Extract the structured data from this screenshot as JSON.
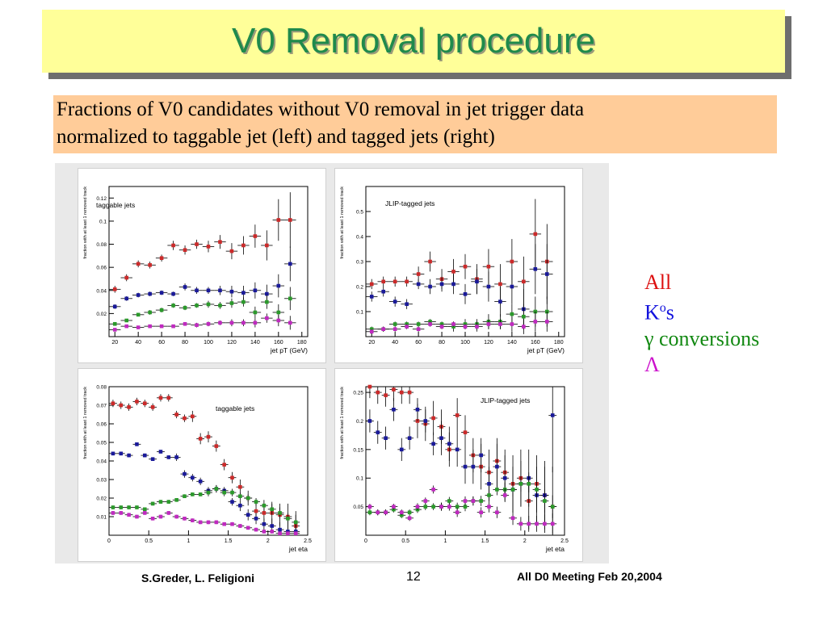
{
  "title": "V0 Removal procedure",
  "subtitle": {
    "line1": "Fractions of V0 candidates without V0 removal in jet trigger data",
    "line2": "normalized to taggable jet (left) and tagged jets (right)"
  },
  "legend": {
    "all": {
      "text": "All",
      "color": "#dd1111"
    },
    "k0s": {
      "base": "K",
      "sup": "o",
      "tail": "s",
      "color": "#1111dd"
    },
    "gamma": {
      "text": "γ conversions",
      "color": "#118811"
    },
    "lambda": {
      "text": "Λ",
      "color": "#cc11cc"
    }
  },
  "footer": {
    "authors": "S.Greder, L. Feligioni",
    "page": "12",
    "meeting": "All D0 Meeting   Feb  20,2004"
  },
  "colors": {
    "all": "#cc2a2a",
    "k0s": "#1a1a9a",
    "gamma": "#2b9a2b",
    "lambda": "#c02ac0"
  },
  "chart_data": [
    {
      "type": "scatter",
      "title": "taggable jets",
      "xlabel": "jet pT (GeV)",
      "ylabel": "fraction with at least 1 removed track",
      "xlim": [
        15,
        185
      ],
      "ylim": [
        0,
        0.13
      ],
      "xticks": [
        20,
        40,
        60,
        80,
        100,
        120,
        140,
        160,
        180
      ],
      "xticklabels": [
        "20",
        "40",
        "60",
        "80",
        "100",
        "120",
        "140",
        "160",
        "180"
      ],
      "yticks": [
        0.02,
        0.04,
        0.06,
        0.08,
        0.1,
        0.12
      ],
      "yticklabels": [
        "0.02",
        "0.04",
        "0.06",
        "0.08",
        "0.1",
        "0.12"
      ],
      "x": [
        20,
        30,
        40,
        50,
        60,
        70,
        80,
        90,
        100,
        110,
        120,
        130,
        140,
        150,
        160,
        170
      ],
      "xerr": 5,
      "series": [
        {
          "key": "all",
          "values": [
            0.041,
            0.051,
            0.063,
            0.062,
            0.068,
            0.079,
            0.075,
            0.08,
            0.078,
            0.082,
            0.074,
            0.079,
            0.087,
            0.079,
            0.101,
            0.101
          ],
          "err": [
            0.003,
            0.003,
            0.003,
            0.003,
            0.003,
            0.004,
            0.004,
            0.004,
            0.005,
            0.006,
            0.007,
            0.008,
            0.01,
            0.013,
            0.018,
            0.024
          ]
        },
        {
          "key": "k0s",
          "values": [
            0.026,
            0.033,
            0.036,
            0.037,
            0.038,
            0.037,
            0.043,
            0.04,
            0.04,
            0.04,
            0.039,
            0.038,
            0.04,
            0.037,
            0.044,
            0.063
          ],
          "err": [
            0.002,
            0.002,
            0.002,
            0.002,
            0.002,
            0.002,
            0.003,
            0.003,
            0.003,
            0.004,
            0.005,
            0.006,
            0.007,
            0.008,
            0.01,
            0.015
          ]
        },
        {
          "key": "gamma",
          "values": [
            0.011,
            0.014,
            0.019,
            0.021,
            0.023,
            0.027,
            0.025,
            0.027,
            0.028,
            0.027,
            0.029,
            0.03,
            0.021,
            0.03,
            0.021,
            0.033
          ],
          "err": [
            0.001,
            0.001,
            0.001,
            0.002,
            0.002,
            0.002,
            0.002,
            0.002,
            0.003,
            0.003,
            0.004,
            0.004,
            0.005,
            0.006,
            0.007,
            0.01
          ]
        },
        {
          "key": "lambda",
          "values": [
            0.006,
            0.009,
            0.008,
            0.009,
            0.009,
            0.009,
            0.011,
            0.01,
            0.011,
            0.012,
            0.012,
            0.012,
            0.012,
            0.016,
            0.014,
            0.012
          ],
          "err": [
            0.001,
            0.001,
            0.001,
            0.001,
            0.001,
            0.001,
            0.001,
            0.002,
            0.002,
            0.002,
            0.003,
            0.003,
            0.004,
            0.004,
            0.005,
            0.006
          ]
        }
      ]
    },
    {
      "type": "scatter",
      "title": "JLIP-tagged jets",
      "xlabel": "jet pT (GeV)",
      "ylabel": "fraction with at least 1 removed track",
      "xlim": [
        15,
        185
      ],
      "ylim": [
        0,
        0.6
      ],
      "xticks": [
        20,
        40,
        60,
        80,
        100,
        120,
        140,
        160,
        180
      ],
      "xticklabels": [
        "20",
        "40",
        "60",
        "80",
        "100",
        "120",
        "140",
        "160",
        "180"
      ],
      "yticks": [
        0.1,
        0.2,
        0.3,
        0.4,
        0.5
      ],
      "yticklabels": [
        "0.1",
        "0.2",
        "0.3",
        "0.4",
        "0.5"
      ],
      "x": [
        20,
        30,
        40,
        50,
        60,
        70,
        80,
        90,
        100,
        110,
        120,
        130,
        140,
        150,
        160,
        170
      ],
      "xerr": 5,
      "series": [
        {
          "key": "all",
          "values": [
            0.21,
            0.22,
            0.22,
            0.22,
            0.25,
            0.3,
            0.23,
            0.26,
            0.28,
            0.23,
            0.28,
            0.21,
            0.3,
            0.22,
            0.41,
            0.3
          ],
          "err": [
            0.02,
            0.02,
            0.02,
            0.02,
            0.03,
            0.04,
            0.04,
            0.05,
            0.05,
            0.06,
            0.07,
            0.08,
            0.09,
            0.1,
            0.14,
            0.15
          ]
        },
        {
          "key": "k0s",
          "values": [
            0.16,
            0.18,
            0.14,
            0.13,
            0.21,
            0.2,
            0.21,
            0.21,
            0.17,
            0.22,
            0.2,
            0.14,
            0.2,
            0.11,
            0.27,
            0.25
          ],
          "err": [
            0.02,
            0.02,
            0.02,
            0.02,
            0.02,
            0.03,
            0.03,
            0.04,
            0.04,
            0.05,
            0.06,
            0.06,
            0.07,
            0.08,
            0.1,
            0.12
          ]
        },
        {
          "key": "gamma",
          "values": [
            0.03,
            0.03,
            0.05,
            0.05,
            0.05,
            0.06,
            0.05,
            0.04,
            0.05,
            0.05,
            0.06,
            0.06,
            0.09,
            0.08,
            0.1,
            0.1
          ],
          "err": [
            0.01,
            0.01,
            0.01,
            0.01,
            0.01,
            0.01,
            0.01,
            0.02,
            0.02,
            0.02,
            0.03,
            0.03,
            0.04,
            0.05,
            0.06,
            0.06
          ]
        },
        {
          "key": "lambda",
          "values": [
            0.02,
            0.03,
            0.03,
            0.04,
            0.03,
            0.05,
            0.04,
            0.05,
            0.04,
            0.04,
            0.05,
            0.05,
            0.05,
            0.04,
            0.06,
            0.06
          ],
          "err": [
            0.01,
            0.01,
            0.01,
            0.01,
            0.01,
            0.01,
            0.01,
            0.01,
            0.01,
            0.02,
            0.02,
            0.02,
            0.03,
            0.03,
            0.04,
            0.04
          ]
        }
      ]
    },
    {
      "type": "scatter",
      "title": "taggable jets",
      "xlabel": "jet eta",
      "ylabel": "fraction with at least 1 removed track",
      "xlim": [
        0,
        2.5
      ],
      "ylim": [
        0,
        0.08
      ],
      "xticks": [
        0,
        0.5,
        1,
        1.5,
        2,
        2.5
      ],
      "xticklabels": [
        "0",
        "0.5",
        "1",
        "1.5",
        "2",
        "2.5"
      ],
      "yticks": [
        0.01,
        0.02,
        0.03,
        0.04,
        0.05,
        0.06,
        0.07,
        0.08
      ],
      "yticklabels": [
        "0.01",
        "0.02",
        "0.03",
        "0.04",
        "0.05",
        "0.06",
        "0.07",
        "0.08"
      ],
      "x": [
        0.05,
        0.15,
        0.25,
        0.35,
        0.45,
        0.55,
        0.65,
        0.75,
        0.85,
        0.95,
        1.05,
        1.15,
        1.25,
        1.35,
        1.45,
        1.55,
        1.65,
        1.75,
        1.85,
        1.95,
        2.05,
        2.15,
        2.25,
        2.35
      ],
      "xerr": 0.05,
      "series": [
        {
          "key": "all",
          "values": [
            0.071,
            0.07,
            0.069,
            0.072,
            0.071,
            0.069,
            0.074,
            0.074,
            0.065,
            0.063,
            0.064,
            0.052,
            0.053,
            0.048,
            0.038,
            0.031,
            0.026,
            0.02,
            0.013,
            0.012,
            0.012,
            0.011,
            0.01,
            0.005
          ],
          "err": [
            0.002,
            0.002,
            0.002,
            0.002,
            0.002,
            0.002,
            0.002,
            0.002,
            0.002,
            0.002,
            0.003,
            0.003,
            0.003,
            0.003,
            0.003,
            0.003,
            0.004,
            0.004,
            0.005,
            0.005,
            0.006,
            0.006,
            0.007,
            0.008
          ]
        },
        {
          "key": "k0s",
          "values": [
            0.044,
            0.044,
            0.043,
            0.049,
            0.043,
            0.041,
            0.045,
            0.042,
            0.042,
            0.033,
            0.031,
            0.029,
            0.024,
            0.025,
            0.024,
            0.018,
            0.016,
            0.011,
            0.009,
            0.006,
            0.005,
            0.003,
            0.002,
            0.002
          ],
          "err": [
            0.001,
            0.001,
            0.001,
            0.001,
            0.001,
            0.001,
            0.001,
            0.001,
            0.002,
            0.002,
            0.002,
            0.002,
            0.002,
            0.002,
            0.002,
            0.002,
            0.003,
            0.003,
            0.003,
            0.003,
            0.004,
            0.004,
            0.004,
            0.005
          ]
        },
        {
          "key": "gamma",
          "values": [
            0.015,
            0.015,
            0.015,
            0.015,
            0.014,
            0.017,
            0.018,
            0.018,
            0.019,
            0.021,
            0.022,
            0.022,
            0.023,
            0.025,
            0.023,
            0.023,
            0.021,
            0.02,
            0.018,
            0.016,
            0.014,
            0.012,
            0.009,
            0.007
          ],
          "err": [
            0.001,
            0.001,
            0.001,
            0.001,
            0.001,
            0.001,
            0.001,
            0.001,
            0.001,
            0.001,
            0.001,
            0.001,
            0.002,
            0.002,
            0.002,
            0.002,
            0.002,
            0.002,
            0.002,
            0.003,
            0.003,
            0.003,
            0.003,
            0.004
          ]
        },
        {
          "key": "lambda",
          "values": [
            0.012,
            0.012,
            0.011,
            0.01,
            0.012,
            0.009,
            0.01,
            0.012,
            0.01,
            0.009,
            0.008,
            0.007,
            0.007,
            0.007,
            0.006,
            0.006,
            0.005,
            0.004,
            0.003,
            0.002,
            0.002,
            0.001,
            0.001,
            0.001
          ],
          "err": [
            0.001,
            0.001,
            0.001,
            0.001,
            0.001,
            0.001,
            0.001,
            0.001,
            0.001,
            0.001,
            0.001,
            0.001,
            0.001,
            0.001,
            0.001,
            0.001,
            0.001,
            0.001,
            0.001,
            0.001,
            0.001,
            0.001,
            0.001,
            0.001
          ]
        }
      ]
    },
    {
      "type": "scatter",
      "title": "JLIP-tagged jets",
      "xlabel": "jet eta",
      "ylabel": "fraction with at least 1 removed track",
      "xlim": [
        0,
        2.5
      ],
      "ylim": [
        0,
        0.26
      ],
      "xticks": [
        0,
        0.5,
        1,
        1.5,
        2,
        2.5
      ],
      "xticklabels": [
        "0",
        "0.5",
        "1",
        "1.5",
        "2",
        "2.5"
      ],
      "yticks": [
        0.05,
        0.1,
        0.15,
        0.2,
        0.25
      ],
      "yticklabels": [
        "0.05",
        "0.1",
        "0.15",
        "0.2",
        "0.25"
      ],
      "x": [
        0.05,
        0.15,
        0.25,
        0.35,
        0.45,
        0.55,
        0.65,
        0.75,
        0.85,
        0.95,
        1.05,
        1.15,
        1.25,
        1.35,
        1.45,
        1.55,
        1.65,
        1.75,
        1.85,
        1.95,
        2.05,
        2.15,
        2.25,
        2.35
      ],
      "xerr": 0.05,
      "series": [
        {
          "key": "all",
          "values": [
            0.26,
            0.25,
            0.245,
            0.255,
            0.25,
            0.25,
            0.2,
            0.195,
            0.205,
            0.19,
            0.15,
            0.21,
            0.18,
            0.14,
            0.12,
            0.11,
            0.13,
            0.11,
            0.09,
            0.1,
            0.06,
            0.09,
            0.07,
            0.05
          ],
          "err": [
            0.02,
            0.02,
            0.02,
            0.02,
            0.02,
            0.02,
            0.03,
            0.03,
            0.03,
            0.03,
            0.03,
            0.03,
            0.03,
            0.03,
            0.04,
            0.04,
            0.04,
            0.04,
            0.05,
            0.05,
            0.05,
            0.05,
            0.06,
            0.07
          ]
        },
        {
          "key": "k0s",
          "values": [
            0.2,
            0.18,
            0.17,
            0.22,
            0.15,
            0.17,
            0.22,
            0.2,
            0.16,
            0.17,
            0.16,
            0.15,
            0.12,
            0.12,
            0.14,
            0.09,
            0.12,
            0.1,
            0.08,
            0.09,
            0.1,
            0.07,
            0.07,
            0.21
          ],
          "err": [
            0.02,
            0.02,
            0.02,
            0.02,
            0.02,
            0.02,
            0.02,
            0.02,
            0.02,
            0.03,
            0.03,
            0.03,
            0.03,
            0.03,
            0.03,
            0.03,
            0.04,
            0.04,
            0.04,
            0.04,
            0.05,
            0.05,
            0.05,
            0.1
          ]
        },
        {
          "key": "gamma",
          "values": [
            0.04,
            0.04,
            0.04,
            0.045,
            0.035,
            0.04,
            0.045,
            0.05,
            0.05,
            0.05,
            0.06,
            0.05,
            0.05,
            0.06,
            0.06,
            0.07,
            0.08,
            0.08,
            0.08,
            0.09,
            0.09,
            0.08,
            0.06,
            0.05
          ],
          "err": [
            0.005,
            0.005,
            0.005,
            0.005,
            0.005,
            0.005,
            0.006,
            0.006,
            0.006,
            0.007,
            0.007,
            0.007,
            0.008,
            0.008,
            0.009,
            0.01,
            0.01,
            0.012,
            0.012,
            0.014,
            0.015,
            0.016,
            0.02,
            0.02
          ]
        },
        {
          "key": "lambda",
          "values": [
            0.05,
            0.04,
            0.04,
            0.05,
            0.04,
            0.03,
            0.05,
            0.06,
            0.08,
            0.05,
            0.05,
            0.04,
            0.06,
            0.06,
            0.04,
            0.05,
            0.04,
            0.07,
            0.03,
            0.02,
            0.02,
            0.02,
            0.02,
            0.02
          ],
          "err": [
            0.005,
            0.005,
            0.005,
            0.005,
            0.005,
            0.005,
            0.006,
            0.006,
            0.007,
            0.007,
            0.007,
            0.008,
            0.008,
            0.008,
            0.009,
            0.01,
            0.01,
            0.012,
            0.012,
            0.012,
            0.014,
            0.014,
            0.016,
            0.018
          ]
        }
      ]
    }
  ]
}
